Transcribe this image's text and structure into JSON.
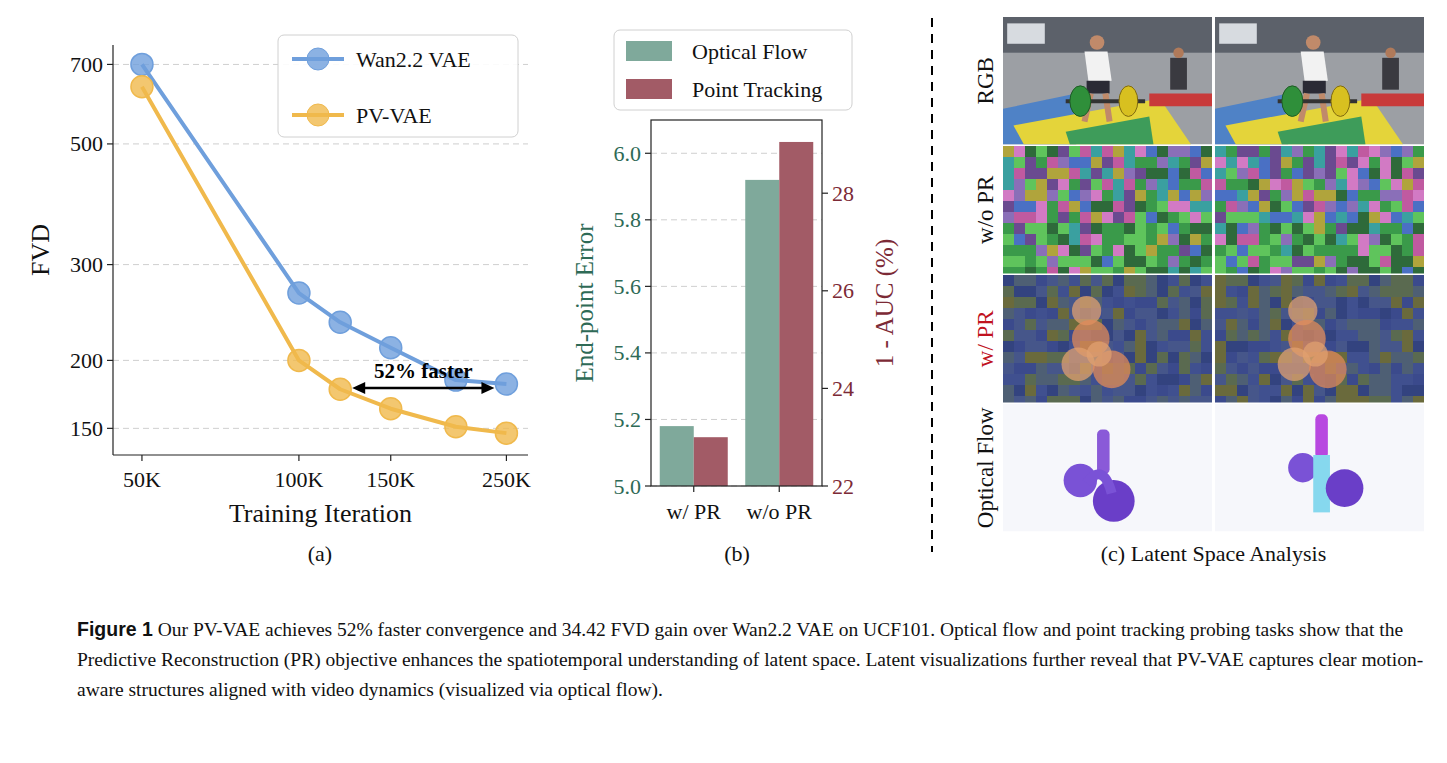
{
  "chart_data": [
    {
      "type": "line",
      "panel": "(a)",
      "x_label": "Training Iteration",
      "y_label": "FVD",
      "x": [
        50000,
        100000,
        120000,
        150000,
        200000,
        250000
      ],
      "series": [
        {
          "name": "Wan2.2 VAE",
          "color": "#6f9fdc",
          "marker": "circle",
          "values": [
            700,
            266,
            235,
            211,
            184,
            181
          ]
        },
        {
          "name": "PV-VAE",
          "color": "#f0b94c",
          "marker": "circle",
          "values": [
            637,
            200,
            177,
            163,
            151,
            147
          ]
        }
      ],
      "log": true,
      "xlim": [
        44000,
        275000
      ],
      "xticks": [
        {
          "value": 50000,
          "label": "50K"
        },
        {
          "value": 100000,
          "label": "100K"
        },
        {
          "value": 150000,
          "label": "150K"
        },
        {
          "value": 250000,
          "label": "250K"
        }
      ],
      "ylim": [
        134,
        760
      ],
      "yticks": [
        150,
        200,
        300,
        500,
        700
      ],
      "grid": "y",
      "legend": "upper right",
      "annotations": [
        {
          "text": "52% faster",
          "x": [
            120000,
            250000
          ],
          "y": 178
        }
      ]
    },
    {
      "type": "bar",
      "panel": "(b)",
      "y_label": "End-point Error",
      "y2_label": "1 - AUC (%)",
      "categories": [
        "w/ PR",
        "w/o PR"
      ],
      "series": [
        {
          "name": "Optical Flow",
          "color": "#7fa99b",
          "values": [
            5.18,
            5.92
          ]
        },
        {
          "name": "Point Tracking",
          "color": "#a25b66",
          "values": [
            23.0,
            29.05
          ],
          "axis": "y2"
        }
      ],
      "ylim": [
        5.0,
        6.1
      ],
      "yticks": [
        {
          "value": 5,
          "label": "5.0"
        },
        5.2,
        5.4,
        5.6,
        5.8,
        {
          "value": 6,
          "label": "6.0"
        }
      ],
      "y2lim": [
        22,
        29.5
      ],
      "y2ticks": [
        22,
        24,
        26,
        28
      ],
      "grid": "y",
      "legend": "top"
    }
  ],
  "panel_c": {
    "title": "(c) Latent Space Analysis",
    "rows": [
      "RGB",
      "w/o PR",
      "w/ PR",
      "Optical Flow"
    ]
  },
  "caption": {
    "label": "Figure 1",
    "text": "Our PV-VAE achieves 52% faster convergence and 34.42 FVD gain over Wan2.2 VAE on UCF101. Optical flow and point tracking probing tasks show that the Predictive Reconstruction (PR) objective enhances the spatiotemporal understanding of latent space. Latent visualizations further reveal that PV-VAE captures clear motion-aware structures aligned with video dynamics (visualized via optical flow)."
  }
}
